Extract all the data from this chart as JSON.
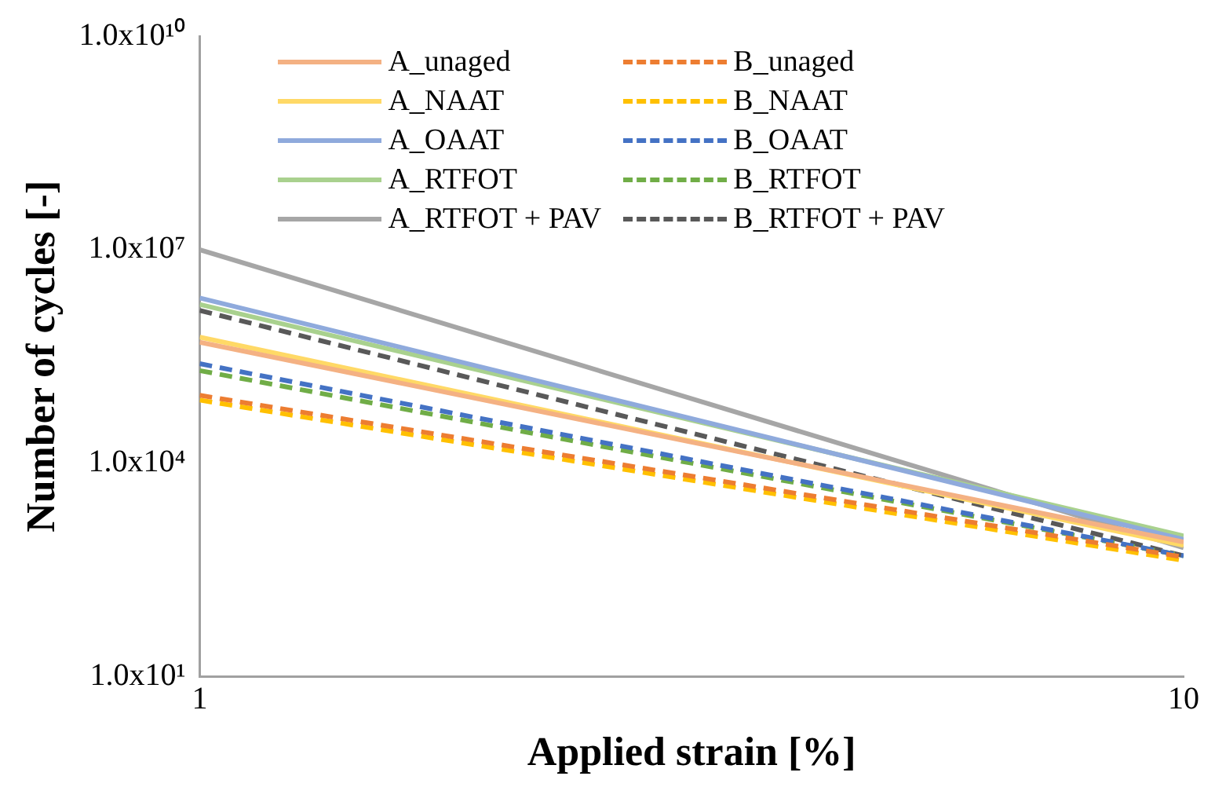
{
  "chart_data": {
    "type": "line",
    "xlabel": "Applied strain [%]",
    "ylabel": "Number of cycles [-]",
    "log": "xy",
    "x": [
      1,
      10
    ],
    "xlim": [
      1,
      10
    ],
    "xticks": [
      1,
      10
    ],
    "ylim": [
      10,
      10000000000
    ],
    "yticks": [
      {
        "value": 10,
        "label": "1.0x10¹"
      },
      {
        "value": 10000,
        "label": "1.0x10⁴"
      },
      {
        "value": 10000000,
        "label": "1.0x10⁷"
      },
      {
        "value": 10000000000,
        "label": "1.0x10¹⁰"
      }
    ],
    "grid": false,
    "legend": "top",
    "marker": "none",
    "series": [
      {
        "name": "A_unaged",
        "color": "#f4b183",
        "line_style": "solid",
        "values": [
          500000,
          780
        ]
      },
      {
        "name": "B_unaged",
        "color": "#ed7d31",
        "line_style": "dashed",
        "values": [
          90000,
          480
        ]
      },
      {
        "name": "A_NAAT",
        "color": "#ffd966",
        "line_style": "solid",
        "values": [
          590000,
          700
        ]
      },
      {
        "name": "B_NAAT",
        "color": "#ffc000",
        "line_style": "dashed",
        "values": [
          77000,
          430
        ]
      },
      {
        "name": "A_OAAT",
        "color": "#8faadc",
        "line_style": "solid",
        "values": [
          2100000,
          850
        ]
      },
      {
        "name": "B_OAAT",
        "color": "#4472c4",
        "line_style": "dashed",
        "values": [
          250000,
          500
        ]
      },
      {
        "name": "A_RTFOT",
        "color": "#a9d18e",
        "line_style": "solid",
        "values": [
          1700000,
          950
        ]
      },
      {
        "name": "B_RTFOT",
        "color": "#70ad47",
        "line_style": "dashed",
        "values": [
          200000,
          500
        ]
      },
      {
        "name": "A_RTFOT + PAV",
        "color": "#a6a6a6",
        "line_style": "solid",
        "values": [
          10000000,
          650
        ]
      },
      {
        "name": "B_RTFOT + PAV",
        "color": "#595959",
        "line_style": "dashed",
        "values": [
          1400000,
          500
        ]
      }
    ]
  }
}
